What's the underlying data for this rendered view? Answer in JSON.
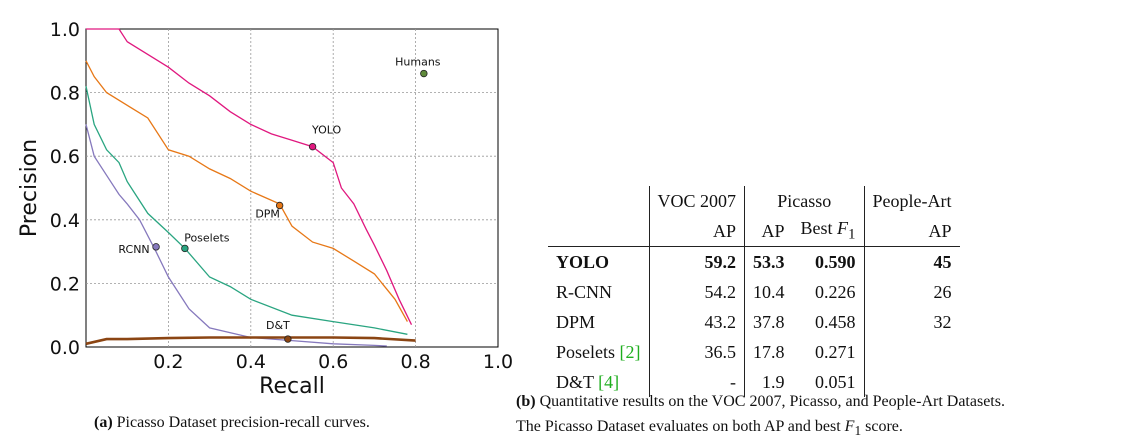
{
  "chart_data": {
    "type": "line",
    "xlabel": "Recall",
    "ylabel": "Precision",
    "xlim": [
      0.0,
      1.0
    ],
    "ylim": [
      0.0,
      1.0
    ],
    "xticks": [
      "0.2",
      "0.4",
      "0.6",
      "0.8",
      "1.0"
    ],
    "yticks": [
      "0.0",
      "0.2",
      "0.4",
      "0.6",
      "0.8",
      "1.0"
    ],
    "grid": true,
    "series": [
      {
        "name": "YOLO",
        "color": "#e0187f",
        "x": [
          0.0,
          0.08,
          0.1,
          0.15,
          0.2,
          0.25,
          0.3,
          0.35,
          0.4,
          0.45,
          0.5,
          0.55,
          0.6,
          0.62,
          0.65,
          0.68,
          0.7,
          0.73,
          0.76,
          0.79
        ],
        "y": [
          1.0,
          1.0,
          0.96,
          0.92,
          0.88,
          0.83,
          0.79,
          0.74,
          0.7,
          0.67,
          0.65,
          0.63,
          0.58,
          0.5,
          0.45,
          0.37,
          0.32,
          0.24,
          0.15,
          0.07
        ]
      },
      {
        "name": "DPM",
        "color": "#e77817",
        "x": [
          0.0,
          0.02,
          0.05,
          0.1,
          0.15,
          0.2,
          0.25,
          0.3,
          0.35,
          0.4,
          0.47,
          0.5,
          0.55,
          0.6,
          0.65,
          0.7,
          0.75,
          0.78
        ],
        "y": [
          0.9,
          0.85,
          0.8,
          0.76,
          0.72,
          0.62,
          0.6,
          0.56,
          0.53,
          0.49,
          0.45,
          0.38,
          0.33,
          0.31,
          0.27,
          0.23,
          0.15,
          0.08
        ]
      },
      {
        "name": "Poselets",
        "color": "#2aa581",
        "x": [
          0.0,
          0.02,
          0.05,
          0.08,
          0.1,
          0.15,
          0.2,
          0.24,
          0.3,
          0.35,
          0.4,
          0.5,
          0.6,
          0.7,
          0.78
        ],
        "y": [
          0.82,
          0.7,
          0.62,
          0.58,
          0.52,
          0.42,
          0.36,
          0.31,
          0.22,
          0.19,
          0.15,
          0.1,
          0.08,
          0.06,
          0.04
        ]
      },
      {
        "name": "RCNN",
        "color": "#8679bd",
        "x": [
          0.0,
          0.02,
          0.05,
          0.08,
          0.1,
          0.13,
          0.17,
          0.2,
          0.25,
          0.3,
          0.4,
          0.5,
          0.6,
          0.7,
          0.73
        ],
        "y": [
          0.7,
          0.6,
          0.54,
          0.48,
          0.45,
          0.4,
          0.3,
          0.22,
          0.12,
          0.06,
          0.03,
          0.02,
          0.01,
          0.005,
          0.003
        ]
      },
      {
        "name": "D&T",
        "color": "#8b4513",
        "x": [
          0.0,
          0.05,
          0.1,
          0.2,
          0.3,
          0.4,
          0.5,
          0.6,
          0.7,
          0.8
        ],
        "y": [
          0.01,
          0.025,
          0.025,
          0.028,
          0.03,
          0.03,
          0.03,
          0.03,
          0.028,
          0.02
        ]
      }
    ],
    "points": [
      {
        "label": "Humans",
        "x": 0.82,
        "y": 0.86,
        "color": "#5f8a3a"
      },
      {
        "label": "YOLO",
        "x": 0.55,
        "y": 0.63,
        "color": "#e0187f"
      },
      {
        "label": "DPM",
        "x": 0.47,
        "y": 0.445,
        "color": "#e77817"
      },
      {
        "label": "Poselets",
        "x": 0.24,
        "y": 0.31,
        "color": "#2aa581"
      },
      {
        "label": "RCNN",
        "x": 0.17,
        "y": 0.315,
        "color": "#8679bd"
      },
      {
        "label": "D&T",
        "x": 0.49,
        "y": 0.025,
        "color": "#8b4513"
      }
    ]
  },
  "caption_a": {
    "tag": "(a)",
    "text": " Picasso Dataset precision-recall curves."
  },
  "table": {
    "header1": {
      "voc": "VOC 2007",
      "picasso": "Picasso",
      "people_art": "People-Art"
    },
    "header2": {
      "ap1": "AP",
      "ap2": "AP",
      "bestf_prefix": "Best ",
      "bestf_var": "F",
      "bestf_sub": "1",
      "ap3": "AP"
    },
    "rows": [
      {
        "name": "YOLO",
        "cite": "",
        "voc": "59.2",
        "pic_ap": "53.3",
        "pic_f1": "0.590",
        "pa": "45"
      },
      {
        "name": "R-CNN",
        "cite": "",
        "voc": "54.2",
        "pic_ap": "10.4",
        "pic_f1": "0.226",
        "pa": "26"
      },
      {
        "name": "DPM",
        "cite": "",
        "voc": "43.2",
        "pic_ap": "37.8",
        "pic_f1": "0.458",
        "pa": "32"
      },
      {
        "name": "Poselets ",
        "cite": "[2]",
        "voc": "36.5",
        "pic_ap": "17.8",
        "pic_f1": "0.271",
        "pa": ""
      },
      {
        "name": "D&T ",
        "cite": "[4]",
        "voc": "-",
        "pic_ap": "1.9",
        "pic_f1": "0.051",
        "pa": ""
      }
    ]
  },
  "caption_b": {
    "tag": "(b)",
    "line1": " Quantitative results on the VOC 2007, Picasso, and People-Art Datasets.",
    "line2_prefix": "The Picasso Dataset evaluates on both AP and best ",
    "line2_var": "F",
    "line2_sub": "1",
    "line2_suffix": " score."
  }
}
